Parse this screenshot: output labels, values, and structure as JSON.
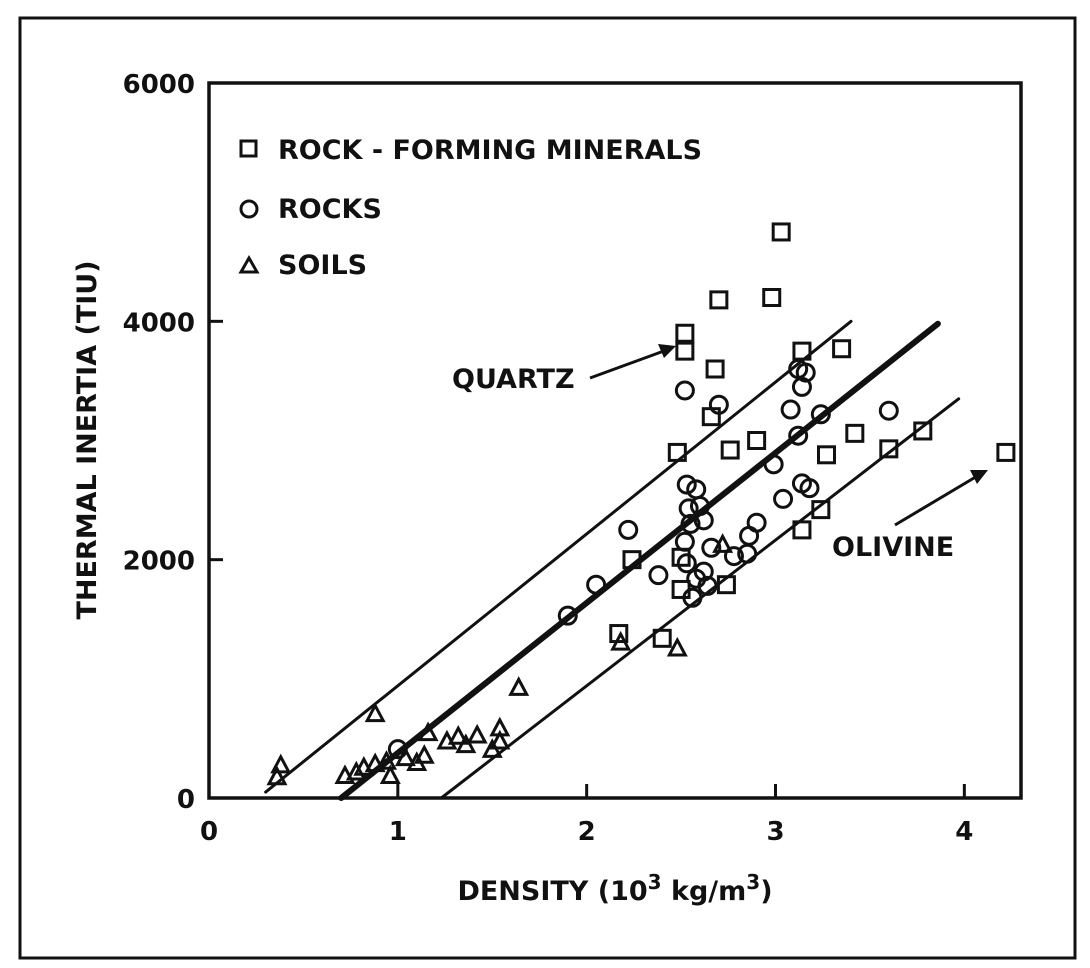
{
  "chart_data": {
    "type": "scatter",
    "xlabel": "DENSITY (10",
    "xlabel_sup": "3",
    "xlabel_units": " kg/m",
    "xlabel_units_sup": "3",
    "xlabel_close": ")",
    "ylabel": "THERMAL INERTIA (TIU)",
    "xlim": [
      0,
      4.3
    ],
    "ylim": [
      0,
      6000
    ],
    "x_ticks": [
      0,
      1,
      2,
      3,
      4
    ],
    "x_tick_labels": [
      "0",
      "1",
      "2",
      "3",
      "4"
    ],
    "y_ticks": [
      0,
      2000,
      4000,
      6000
    ],
    "y_tick_labels": [
      "0",
      "2000",
      "4000",
      "6000"
    ],
    "grid": false,
    "legend_position": "top-left",
    "legend": [
      {
        "marker": "square",
        "label": "ROCK - FORMING  MINERALS"
      },
      {
        "marker": "circle",
        "label": "ROCKS"
      },
      {
        "marker": "triangle",
        "label": "SOILS"
      }
    ],
    "series": [
      {
        "name": "ROCK - FORMING  MINERALS",
        "marker": "square",
        "points": [
          [
            2.52,
            3900
          ],
          [
            2.52,
            3750
          ],
          [
            2.68,
            3600
          ],
          [
            2.7,
            4180
          ],
          [
            2.98,
            4200
          ],
          [
            3.03,
            4750
          ],
          [
            3.14,
            3750
          ],
          [
            3.35,
            3770
          ],
          [
            2.48,
            2900
          ],
          [
            2.66,
            3200
          ],
          [
            2.76,
            2920
          ],
          [
            2.9,
            3000
          ],
          [
            3.42,
            3060
          ],
          [
            3.78,
            3080
          ],
          [
            3.6,
            2930
          ],
          [
            4.22,
            2900
          ],
          [
            3.27,
            2880
          ],
          [
            3.24,
            2420
          ],
          [
            3.14,
            2250
          ],
          [
            2.24,
            2000
          ],
          [
            2.5,
            2020
          ],
          [
            2.5,
            1750
          ],
          [
            2.74,
            1790
          ],
          [
            2.17,
            1380
          ],
          [
            2.4,
            1340
          ]
        ]
      },
      {
        "name": "ROCKS",
        "marker": "circle",
        "points": [
          [
            1.0,
            410
          ],
          [
            1.9,
            1530
          ],
          [
            2.05,
            1790
          ],
          [
            2.22,
            2250
          ],
          [
            2.38,
            1870
          ],
          [
            2.52,
            3420
          ],
          [
            2.7,
            3300
          ],
          [
            2.53,
            2630
          ],
          [
            2.58,
            2590
          ],
          [
            2.54,
            2430
          ],
          [
            2.6,
            2450
          ],
          [
            2.55,
            2300
          ],
          [
            2.62,
            2330
          ],
          [
            2.52,
            2150
          ],
          [
            2.66,
            2100
          ],
          [
            2.58,
            1840
          ],
          [
            2.62,
            1900
          ],
          [
            2.53,
            1970
          ],
          [
            2.56,
            1680
          ],
          [
            2.64,
            1780
          ],
          [
            2.78,
            2030
          ],
          [
            2.85,
            2050
          ],
          [
            2.86,
            2200
          ],
          [
            2.9,
            2310
          ],
          [
            2.99,
            2800
          ],
          [
            3.04,
            2510
          ],
          [
            3.08,
            3260
          ],
          [
            3.12,
            3040
          ],
          [
            3.12,
            3600
          ],
          [
            3.16,
            3570
          ],
          [
            3.14,
            3450
          ],
          [
            3.24,
            3220
          ],
          [
            3.14,
            2640
          ],
          [
            3.18,
            2600
          ],
          [
            3.6,
            3250
          ]
        ]
      },
      {
        "name": "SOILS",
        "marker": "triangle",
        "points": [
          [
            0.36,
            170
          ],
          [
            0.38,
            270
          ],
          [
            0.72,
            180
          ],
          [
            0.78,
            210
          ],
          [
            0.82,
            250
          ],
          [
            0.88,
            280
          ],
          [
            0.88,
            700
          ],
          [
            0.94,
            300
          ],
          [
            0.96,
            180
          ],
          [
            1.04,
            330
          ],
          [
            1.1,
            290
          ],
          [
            1.14,
            350
          ],
          [
            1.16,
            540
          ],
          [
            1.26,
            470
          ],
          [
            1.32,
            510
          ],
          [
            1.36,
            440
          ],
          [
            1.42,
            520
          ],
          [
            1.5,
            400
          ],
          [
            1.54,
            580
          ],
          [
            1.54,
            470
          ],
          [
            1.64,
            920
          ],
          [
            2.18,
            1300
          ],
          [
            2.48,
            1250
          ],
          [
            2.72,
            2120
          ]
        ]
      }
    ],
    "fit_lines": [
      {
        "name": "best fit",
        "from": [
          0.7,
          0
        ],
        "to": [
          3.86,
          3980
        ],
        "bold": true
      },
      {
        "name": "upper bound",
        "from": [
          0.3,
          50
        ],
        "to": [
          3.4,
          4000
        ],
        "bold": false
      },
      {
        "name": "lower bound",
        "from": [
          1.23,
          0
        ],
        "to": [
          3.97,
          3350
        ],
        "bold": false
      }
    ],
    "annotations": [
      {
        "text": "QUARTZ",
        "points_to": [
          2.5,
          3850
        ]
      },
      {
        "text": "OLIVINE",
        "points_to": [
          4.2,
          2900
        ]
      }
    ]
  }
}
